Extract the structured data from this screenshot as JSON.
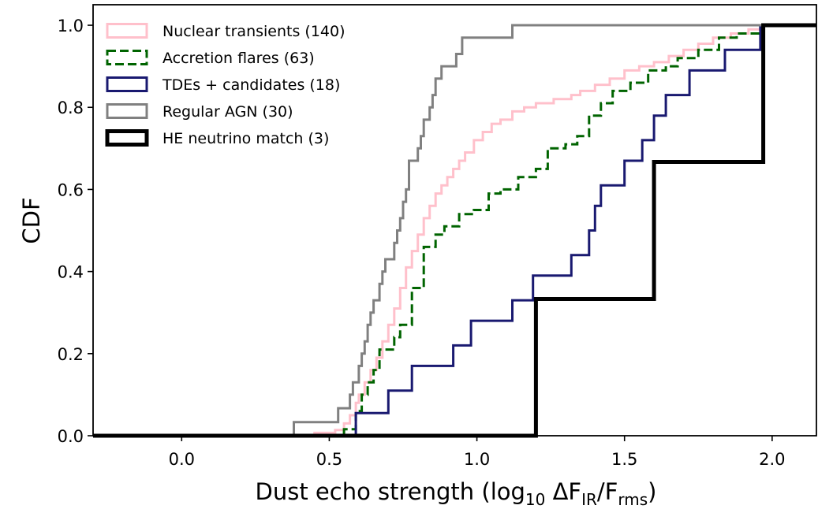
{
  "chart_data": {
    "type": "step-cdf",
    "xlabel": {
      "text": "Dust echo strength (log",
      "sub1": "10",
      "mid": " ΔF",
      "sub2": "IR",
      "slash": "/F",
      "sub3": "rms",
      "close": ")"
    },
    "ylabel": "CDF",
    "xlim": [
      -0.3,
      2.15
    ],
    "ylim": [
      0.0,
      1.05
    ],
    "xticks": [
      0.0,
      0.5,
      1.0,
      1.5,
      2.0
    ],
    "xtick_labels": [
      "0.0",
      "0.5",
      "1.0",
      "1.5",
      "2.0"
    ],
    "yticks": [
      0.0,
      0.2,
      0.4,
      0.6,
      0.8,
      1.0
    ],
    "ytick_labels": [
      "0.0",
      "0.2",
      "0.4",
      "0.6",
      "0.8",
      "1.0"
    ],
    "grid": false,
    "legend_position": "upper-left",
    "series": [
      {
        "name": "Nuclear transients (140)",
        "color": "#ffc0cb",
        "dash": "solid",
        "width": 3,
        "points": [
          [
            -0.3,
            0.0
          ],
          [
            0.39,
            0.0
          ],
          [
            0.45,
            0.007
          ],
          [
            0.52,
            0.014
          ],
          [
            0.55,
            0.03
          ],
          [
            0.57,
            0.05
          ],
          [
            0.59,
            0.08
          ],
          [
            0.6,
            0.1
          ],
          [
            0.62,
            0.13
          ],
          [
            0.64,
            0.16
          ],
          [
            0.66,
            0.19
          ],
          [
            0.68,
            0.23
          ],
          [
            0.7,
            0.27
          ],
          [
            0.72,
            0.31
          ],
          [
            0.74,
            0.36
          ],
          [
            0.76,
            0.41
          ],
          [
            0.78,
            0.45
          ],
          [
            0.8,
            0.49
          ],
          [
            0.82,
            0.53
          ],
          [
            0.84,
            0.56
          ],
          [
            0.86,
            0.59
          ],
          [
            0.88,
            0.61
          ],
          [
            0.9,
            0.63
          ],
          [
            0.92,
            0.65
          ],
          [
            0.94,
            0.67
          ],
          [
            0.96,
            0.69
          ],
          [
            0.99,
            0.72
          ],
          [
            1.02,
            0.74
          ],
          [
            1.05,
            0.76
          ],
          [
            1.08,
            0.77
          ],
          [
            1.12,
            0.79
          ],
          [
            1.16,
            0.8
          ],
          [
            1.2,
            0.81
          ],
          [
            1.26,
            0.82
          ],
          [
            1.32,
            0.83
          ],
          [
            1.35,
            0.84
          ],
          [
            1.4,
            0.855
          ],
          [
            1.45,
            0.87
          ],
          [
            1.5,
            0.89
          ],
          [
            1.55,
            0.9
          ],
          [
            1.6,
            0.91
          ],
          [
            1.65,
            0.925
          ],
          [
            1.7,
            0.94
          ],
          [
            1.75,
            0.955
          ],
          [
            1.8,
            0.97
          ],
          [
            1.86,
            0.98
          ],
          [
            1.92,
            0.99
          ],
          [
            1.97,
            1.0
          ],
          [
            2.15,
            1.0
          ]
        ]
      },
      {
        "name": "Accretion flares (63)",
        "color": "#006400",
        "dash": "dashed",
        "width": 3,
        "points": [
          [
            -0.3,
            0.0
          ],
          [
            0.53,
            0.0
          ],
          [
            0.55,
            0.016
          ],
          [
            0.59,
            0.06
          ],
          [
            0.61,
            0.1
          ],
          [
            0.63,
            0.13
          ],
          [
            0.65,
            0.16
          ],
          [
            0.67,
            0.21
          ],
          [
            0.72,
            0.24
          ],
          [
            0.74,
            0.27
          ],
          [
            0.78,
            0.36
          ],
          [
            0.82,
            0.46
          ],
          [
            0.86,
            0.49
          ],
          [
            0.89,
            0.51
          ],
          [
            0.94,
            0.54
          ],
          [
            0.99,
            0.55
          ],
          [
            1.04,
            0.59
          ],
          [
            1.08,
            0.6
          ],
          [
            1.14,
            0.63
          ],
          [
            1.2,
            0.65
          ],
          [
            1.24,
            0.7
          ],
          [
            1.3,
            0.71
          ],
          [
            1.34,
            0.73
          ],
          [
            1.38,
            0.78
          ],
          [
            1.42,
            0.81
          ],
          [
            1.46,
            0.84
          ],
          [
            1.52,
            0.86
          ],
          [
            1.58,
            0.89
          ],
          [
            1.64,
            0.9
          ],
          [
            1.68,
            0.92
          ],
          [
            1.75,
            0.94
          ],
          [
            1.82,
            0.97
          ],
          [
            1.88,
            0.98
          ],
          [
            1.96,
            1.0
          ],
          [
            2.15,
            1.0
          ]
        ]
      },
      {
        "name": "TDEs + candidates (18)",
        "color": "#191970",
        "dash": "solid",
        "width": 3,
        "points": [
          [
            -0.3,
            0.0
          ],
          [
            0.59,
            0.0
          ],
          [
            0.59,
            0.055
          ],
          [
            0.7,
            0.11
          ],
          [
            0.78,
            0.17
          ],
          [
            0.92,
            0.22
          ],
          [
            0.98,
            0.28
          ],
          [
            1.12,
            0.33
          ],
          [
            1.19,
            0.39
          ],
          [
            1.32,
            0.44
          ],
          [
            1.38,
            0.5
          ],
          [
            1.4,
            0.56
          ],
          [
            1.42,
            0.61
          ],
          [
            1.5,
            0.67
          ],
          [
            1.56,
            0.72
          ],
          [
            1.6,
            0.78
          ],
          [
            1.64,
            0.83
          ],
          [
            1.72,
            0.89
          ],
          [
            1.84,
            0.94
          ],
          [
            1.96,
            1.0
          ],
          [
            2.15,
            1.0
          ]
        ]
      },
      {
        "name": "Regular AGN (30)",
        "color": "#808080",
        "dash": "solid",
        "width": 3,
        "points": [
          [
            -0.3,
            0.0
          ],
          [
            0.38,
            0.0
          ],
          [
            0.38,
            0.033
          ],
          [
            0.53,
            0.067
          ],
          [
            0.57,
            0.1
          ],
          [
            0.58,
            0.13
          ],
          [
            0.6,
            0.17
          ],
          [
            0.61,
            0.2
          ],
          [
            0.62,
            0.23
          ],
          [
            0.63,
            0.27
          ],
          [
            0.64,
            0.3
          ],
          [
            0.65,
            0.33
          ],
          [
            0.67,
            0.37
          ],
          [
            0.68,
            0.4
          ],
          [
            0.69,
            0.43
          ],
          [
            0.72,
            0.47
          ],
          [
            0.73,
            0.5
          ],
          [
            0.74,
            0.53
          ],
          [
            0.75,
            0.57
          ],
          [
            0.76,
            0.6
          ],
          [
            0.77,
            0.63
          ],
          [
            0.77,
            0.67
          ],
          [
            0.8,
            0.7
          ],
          [
            0.81,
            0.73
          ],
          [
            0.82,
            0.77
          ],
          [
            0.84,
            0.8
          ],
          [
            0.85,
            0.83
          ],
          [
            0.86,
            0.87
          ],
          [
            0.88,
            0.9
          ],
          [
            0.93,
            0.93
          ],
          [
            0.95,
            0.97
          ],
          [
            1.12,
            1.0
          ],
          [
            2.15,
            1.0
          ]
        ]
      },
      {
        "name": "HE neutrino match (3)",
        "color": "#000000",
        "dash": "solid",
        "width": 5,
        "points": [
          [
            -0.3,
            0.0
          ],
          [
            1.2,
            0.0
          ],
          [
            1.2,
            0.333
          ],
          [
            1.6,
            0.333
          ],
          [
            1.6,
            0.667
          ],
          [
            1.97,
            0.667
          ],
          [
            1.97,
            1.0
          ],
          [
            2.15,
            1.0
          ]
        ]
      }
    ]
  }
}
